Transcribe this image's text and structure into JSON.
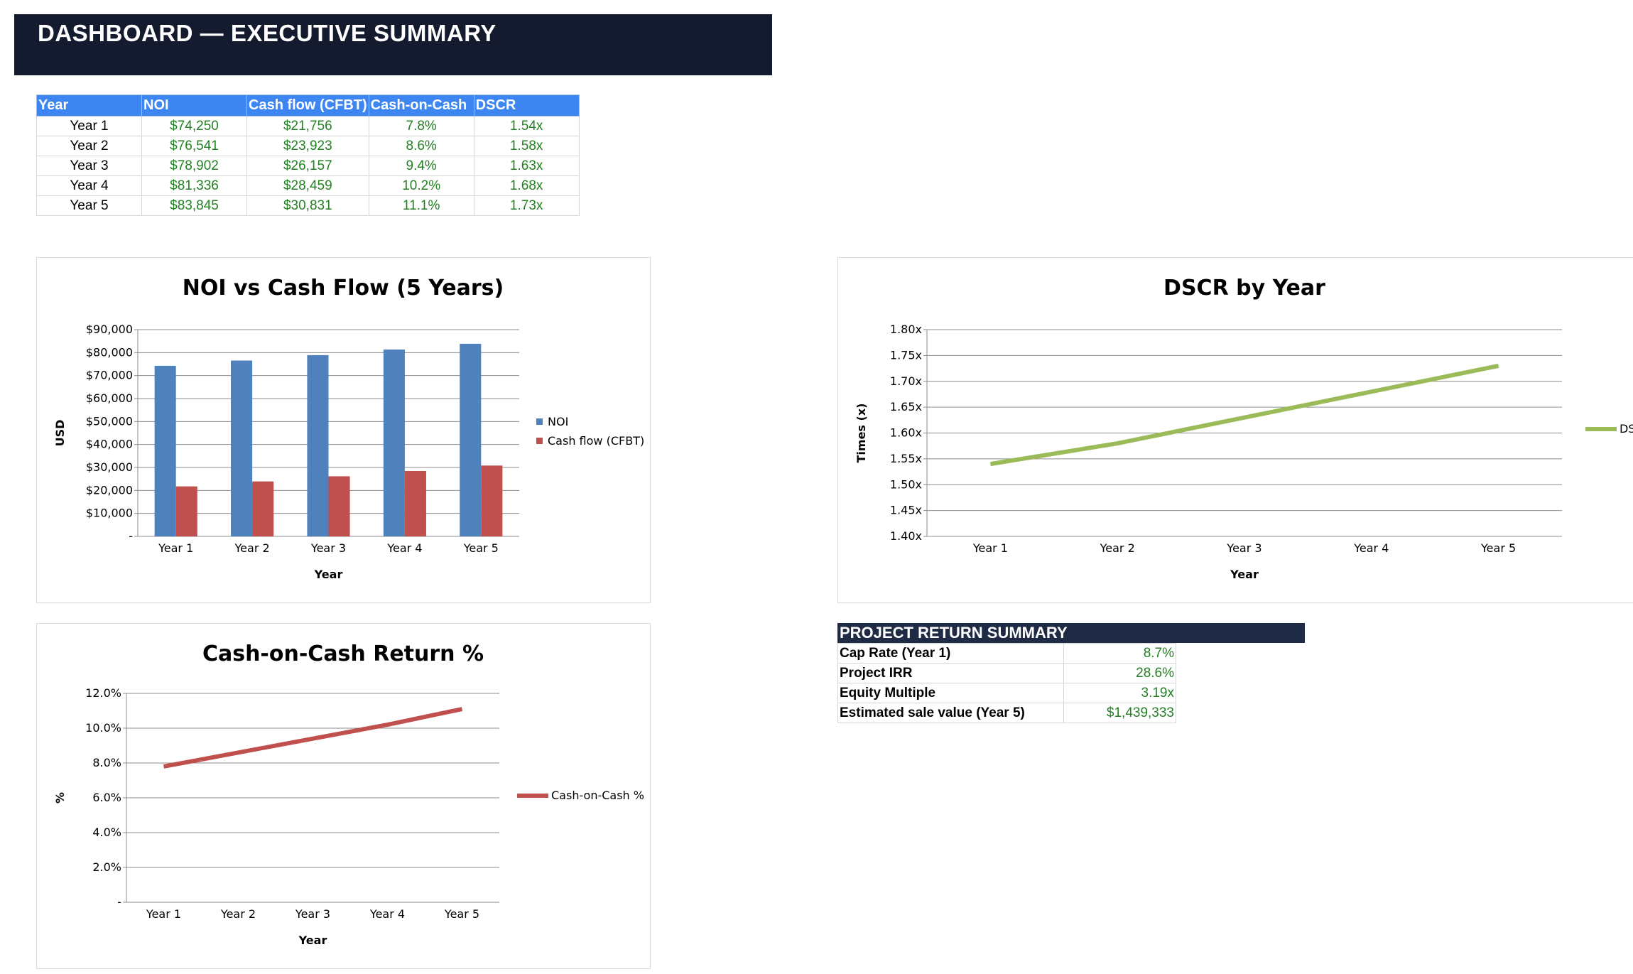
{
  "banner": {
    "title": "DASHBOARD — EXECUTIVE SUMMARY"
  },
  "table": {
    "headers": [
      "Year",
      "NOI",
      "Cash flow (CFBT)",
      "Cash-on-Cash",
      "DSCR"
    ],
    "rows": [
      [
        "Year 1",
        "$74,250",
        "$21,756",
        "7.8%",
        "1.54x"
      ],
      [
        "Year 2",
        "$76,541",
        "$23,923",
        "8.6%",
        "1.58x"
      ],
      [
        "Year 3",
        "$78,902",
        "$26,157",
        "9.4%",
        "1.63x"
      ],
      [
        "Year 4",
        "$81,336",
        "$28,459",
        "10.2%",
        "1.68x"
      ],
      [
        "Year 5",
        "$83,845",
        "$30,831",
        "11.1%",
        "1.73x"
      ]
    ]
  },
  "summary": {
    "title": "PROJECT RETURN SUMMARY",
    "rows": [
      {
        "label": "Cap Rate (Year 1)",
        "value": "8.7%"
      },
      {
        "label": "Project IRR",
        "value": "28.6%"
      },
      {
        "label": "Equity Multiple",
        "value": "3.19x"
      },
      {
        "label": "Estimated sale value (Year 5)",
        "value": "$1,439,333"
      }
    ]
  },
  "colors": {
    "noi": "#4f81bd",
    "cash_flow": "#c0504d",
    "dscr": "#9bbb59",
    "coc": "#c0504d",
    "banner": "#141b2e",
    "header_blue": "#3d85f0"
  },
  "chart_data": [
    {
      "type": "bar",
      "title": "NOI vs Cash Flow (5 Years)",
      "xlabel": "Year",
      "ylabel": "USD",
      "categories": [
        "Year 1",
        "Year 2",
        "Year 3",
        "Year 4",
        "Year 5"
      ],
      "series": [
        {
          "name": "NOI",
          "values": [
            74250,
            76541,
            78902,
            81336,
            83845
          ]
        },
        {
          "name": "Cash flow (CFBT)",
          "values": [
            21756,
            23923,
            26157,
            28459,
            30831
          ]
        }
      ],
      "ylim": [
        0,
        90000
      ],
      "yticks": [
        "-",
        "$10,000",
        "$20,000",
        "$30,000",
        "$40,000",
        "$50,000",
        "$60,000",
        "$70,000",
        "$80,000",
        "$90,000"
      ],
      "grid": true,
      "legend": "right"
    },
    {
      "type": "line",
      "title": "DSCR by Year",
      "xlabel": "Year",
      "ylabel": "Times (x)",
      "categories": [
        "Year 1",
        "Year 2",
        "Year 3",
        "Year 4",
        "Year 5"
      ],
      "series": [
        {
          "name": "DSCR",
          "values": [
            1.54,
            1.58,
            1.63,
            1.68,
            1.73
          ]
        }
      ],
      "ylim": [
        1.4,
        1.8
      ],
      "yticks": [
        "1.40x",
        "1.45x",
        "1.50x",
        "1.55x",
        "1.60x",
        "1.65x",
        "1.70x",
        "1.75x",
        "1.80x"
      ],
      "legend_visible_text": "DS",
      "grid": true,
      "legend": "right"
    },
    {
      "type": "line",
      "title": "Cash-on-Cash Return %",
      "xlabel": "Year",
      "ylabel": "%",
      "categories": [
        "Year 1",
        "Year 2",
        "Year 3",
        "Year 4",
        "Year 5"
      ],
      "series": [
        {
          "name": "Cash-on-Cash %",
          "values": [
            7.8,
            8.6,
            9.4,
            10.2,
            11.1
          ]
        }
      ],
      "ylim": [
        0,
        12
      ],
      "yticks": [
        "-",
        "2.0%",
        "4.0%",
        "6.0%",
        "8.0%",
        "10.0%",
        "12.0%"
      ],
      "grid": true,
      "legend": "right"
    }
  ]
}
